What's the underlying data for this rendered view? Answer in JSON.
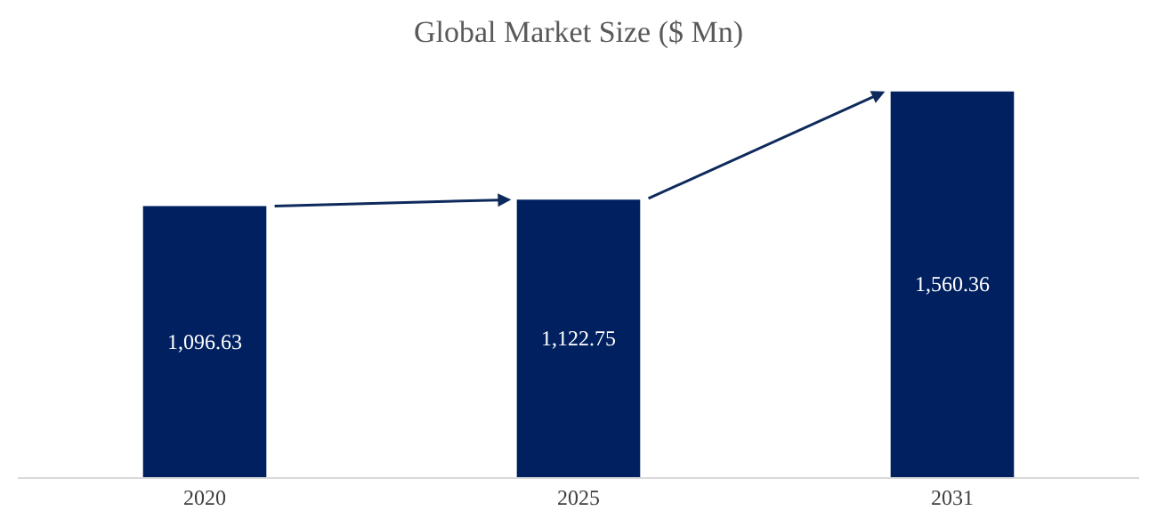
{
  "chart_data": {
    "type": "bar",
    "title": "Global Market Size ($ Mn)",
    "categories": [
      "2020",
      "2025",
      "2031"
    ],
    "values": [
      1096.63,
      1122.75,
      1560.36
    ],
    "value_labels": [
      "1,096.63",
      "1,122.75",
      "1,560.36"
    ],
    "color": "#002060",
    "tick_labels": "x"
  }
}
